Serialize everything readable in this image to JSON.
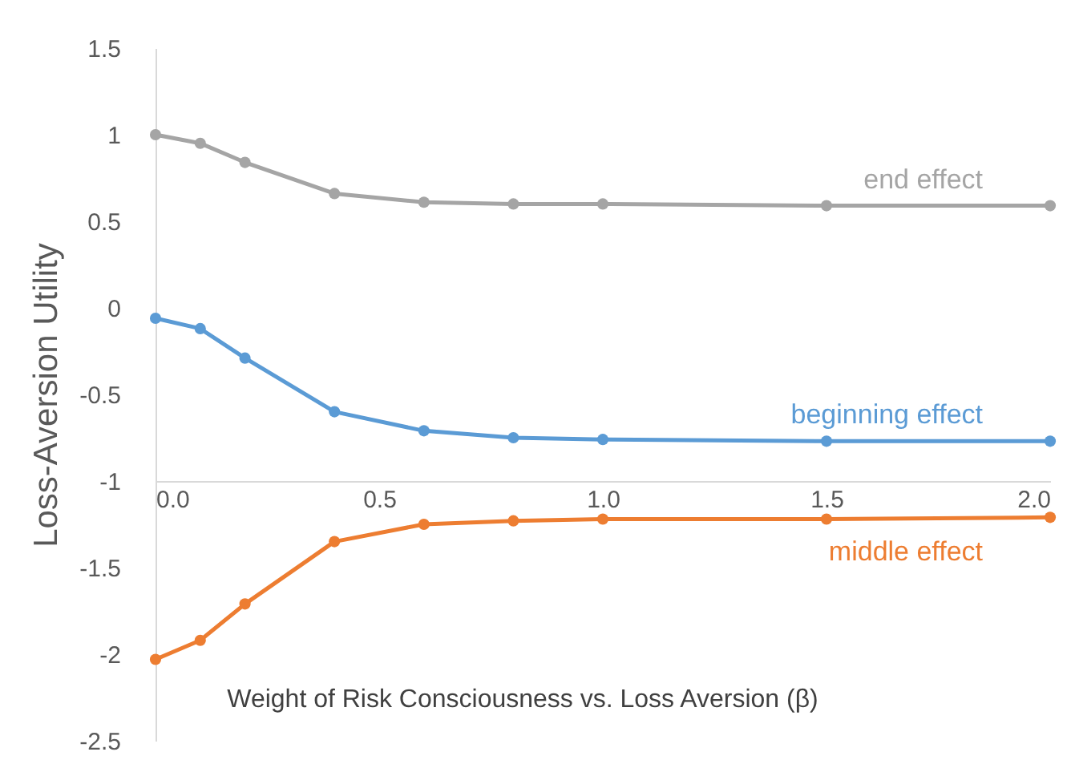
{
  "chart_data": {
    "type": "line",
    "xlabel": "Weight of Risk Consciousness vs. Loss Aversion (β)",
    "ylabel": "Loss-Aversion Utility",
    "x": [
      0,
      0.1,
      0.2,
      0.4,
      0.6,
      0.8,
      1.0,
      1.5,
      2.0
    ],
    "series": [
      {
        "name": "end effect",
        "color": "#a5a5a5",
        "values": [
          1.0,
          0.95,
          0.84,
          0.66,
          0.61,
          0.6,
          0.6,
          0.59,
          0.59
        ]
      },
      {
        "name": "beginning effect",
        "color": "#5b9bd5",
        "values": [
          -0.06,
          -0.12,
          -0.29,
          -0.6,
          -0.71,
          -0.75,
          -0.76,
          -0.77,
          -0.77
        ]
      },
      {
        "name": "middle effect",
        "color": "#ed7d31",
        "values": [
          -2.03,
          -1.92,
          -1.71,
          -1.35,
          -1.25,
          -1.23,
          -1.22,
          -1.22,
          -1.21
        ]
      }
    ],
    "xlim": [
      0,
      2.0
    ],
    "xticks": [
      {
        "value": 0,
        "label": "0.0"
      },
      0.5,
      {
        "value": 1,
        "label": "1.0"
      },
      1.5,
      {
        "value": 2,
        "label": "2.0"
      }
    ],
    "ylim": [
      -2.5,
      1.5
    ],
    "yticks": [
      -2.5,
      -2,
      -1.5,
      -1,
      -0.5,
      0,
      0.5,
      1,
      1.5
    ],
    "grid": false,
    "legend": false,
    "marker": "circle",
    "line_style": "solid"
  }
}
